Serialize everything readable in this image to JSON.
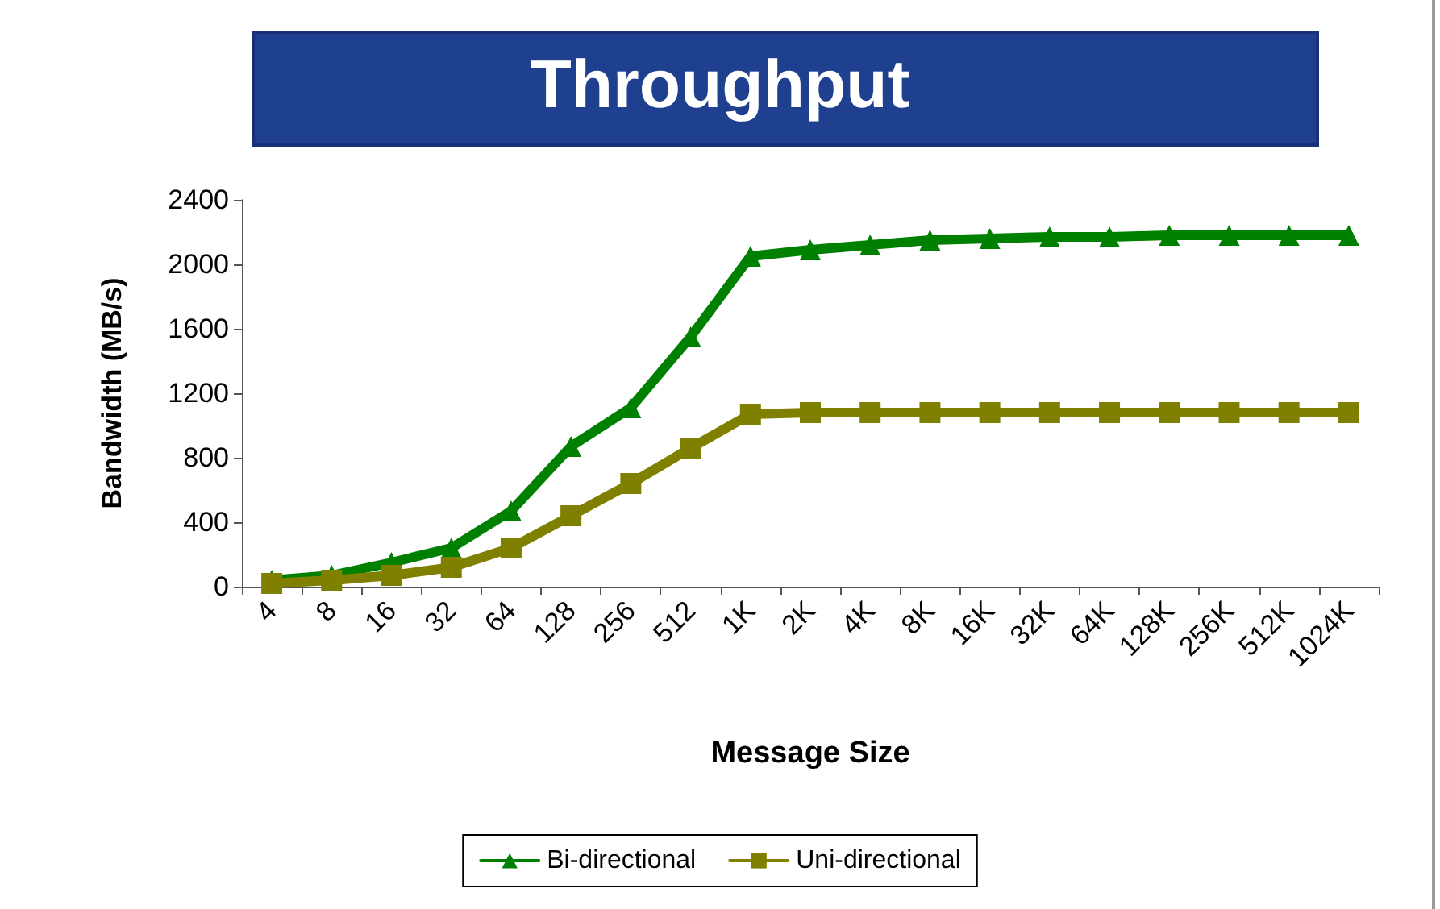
{
  "chart_data": {
    "type": "line",
    "title": "Throughput",
    "xlabel": "Message Size",
    "ylabel": "Bandwidth (MB/s)",
    "categories": [
      "4",
      "8",
      "16",
      "32",
      "64",
      "128",
      "256",
      "512",
      "1K",
      "2K",
      "4K",
      "8K",
      "16K",
      "32K",
      "64K",
      "128K",
      "256K",
      "512K",
      "1024K"
    ],
    "series": [
      {
        "name": "Bi-directional",
        "color": "#008000",
        "marker": "triangle",
        "values": [
          40,
          70,
          150,
          240,
          470,
          870,
          1110,
          1550,
          2050,
          2090,
          2120,
          2150,
          2160,
          2170,
          2170,
          2180,
          2180,
          2180,
          2180
        ]
      },
      {
        "name": "Uni-directional",
        "color": "#808000",
        "marker": "square",
        "values": [
          20,
          40,
          70,
          120,
          240,
          440,
          640,
          860,
          1070,
          1080,
          1080,
          1080,
          1080,
          1080,
          1080,
          1080,
          1080,
          1080,
          1080
        ]
      }
    ],
    "ylim": [
      0,
      2400
    ],
    "yticks": [
      0,
      400,
      800,
      1200,
      1600,
      2000,
      2400
    ],
    "grid": false,
    "legend": "bottom"
  }
}
